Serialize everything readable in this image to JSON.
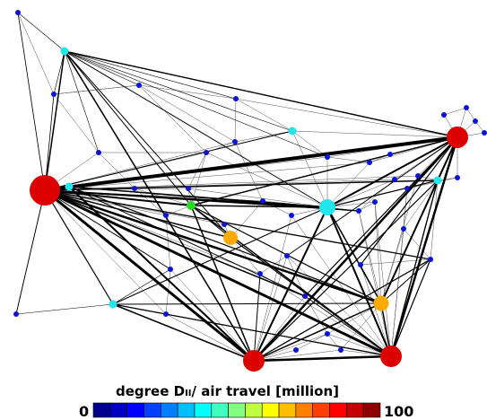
{
  "legend": {
    "title": "degree  D",
    "title_sub": "II",
    "title_rest": "/ air travel [million]",
    "min_label": "0",
    "max_label": "100",
    "scale_colors": [
      "#00008f",
      "#0000c4",
      "#0000ff",
      "#0040ff",
      "#0080ff",
      "#00bfff",
      "#00ffff",
      "#40ffbf",
      "#80ff80",
      "#bfff40",
      "#ffff00",
      "#ffbf00",
      "#ff8000",
      "#ff4000",
      "#ff0000",
      "#c40000",
      "#8f0000"
    ]
  },
  "nodes": [
    {
      "id": "n1",
      "level": "blue"
    },
    {
      "id": "n2",
      "level": "cyan"
    },
    {
      "id": "n3",
      "level": "blue"
    },
    {
      "id": "n4",
      "level": "blue"
    },
    {
      "id": "n5",
      "level": "blue"
    },
    {
      "id": "n6",
      "level": "red"
    },
    {
      "id": "n7",
      "level": "cyan"
    },
    {
      "id": "n8",
      "level": "blue"
    },
    {
      "id": "n9",
      "level": "blue"
    },
    {
      "id": "n10",
      "level": "blue"
    },
    {
      "id": "n11",
      "level": "blue"
    },
    {
      "id": "n12",
      "level": "blue"
    },
    {
      "id": "n13",
      "level": "red"
    },
    {
      "id": "n14",
      "level": "blue"
    },
    {
      "id": "n15",
      "level": "blue"
    },
    {
      "id": "n16",
      "level": "blue"
    },
    {
      "id": "n17",
      "level": "blue"
    },
    {
      "id": "n18",
      "level": "green"
    },
    {
      "id": "n19",
      "level": "blue"
    },
    {
      "id": "n20",
      "level": "blue"
    },
    {
      "id": "n21",
      "level": "blue"
    },
    {
      "id": "n22",
      "level": "orange"
    },
    {
      "id": "n23",
      "level": "blue"
    },
    {
      "id": "n24",
      "level": "blue"
    },
    {
      "id": "n25",
      "level": "cyan"
    },
    {
      "id": "n26",
      "level": "blue"
    },
    {
      "id": "n27",
      "level": "blue"
    },
    {
      "id": "n28",
      "level": "cyan"
    },
    {
      "id": "n29",
      "level": "blue"
    },
    {
      "id": "n30",
      "level": "cyan"
    },
    {
      "id": "n31",
      "level": "blue"
    },
    {
      "id": "n32",
      "level": "blue"
    },
    {
      "id": "n33",
      "level": "blue"
    },
    {
      "id": "n34",
      "level": "cyan"
    },
    {
      "id": "n35",
      "level": "blue"
    },
    {
      "id": "n36",
      "level": "blue"
    },
    {
      "id": "n37",
      "level": "blue"
    },
    {
      "id": "n38",
      "level": "orange"
    },
    {
      "id": "n39",
      "level": "blue"
    },
    {
      "id": "n40",
      "level": "blue"
    },
    {
      "id": "n41",
      "level": "red"
    },
    {
      "id": "n42",
      "level": "blue"
    },
    {
      "id": "n43",
      "level": "red"
    },
    {
      "id": "n44",
      "level": "blue"
    },
    {
      "id": "n45",
      "level": "blue"
    },
    {
      "id": "n46",
      "level": "blue"
    },
    {
      "id": "n47",
      "level": "blue"
    },
    {
      "id": "n48",
      "level": "blue"
    },
    {
      "id": "n49",
      "level": "blue"
    },
    {
      "id": "n50",
      "level": "blue"
    },
    {
      "id": "n51",
      "level": "blue"
    }
  ],
  "level_colors": {
    "blue": "#0a14d8",
    "cyan": "#22e6ee",
    "green": "#22dd22",
    "orange": "#ffaa00",
    "red": "#dd0000"
  }
}
